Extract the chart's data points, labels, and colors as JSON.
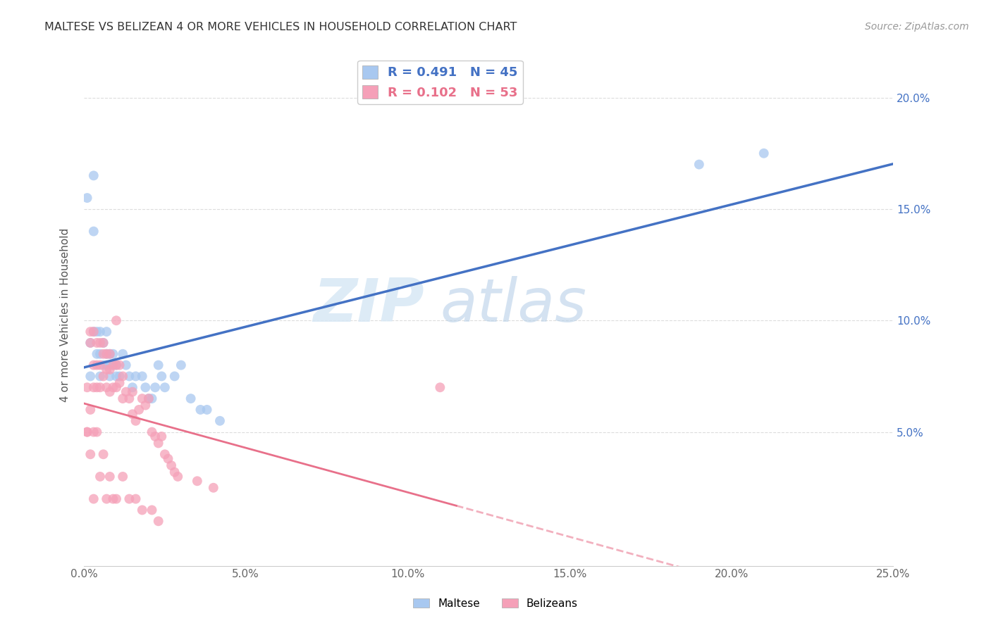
{
  "title": "MALTESE VS BELIZEAN 4 OR MORE VEHICLES IN HOUSEHOLD CORRELATION CHART",
  "source": "Source: ZipAtlas.com",
  "ylabel": "4 or more Vehicles in Household",
  "xlim": [
    0.0,
    0.25
  ],
  "ylim": [
    -0.01,
    0.215
  ],
  "xticks": [
    0.0,
    0.05,
    0.1,
    0.15,
    0.2,
    0.25
  ],
  "yticks": [
    0.05,
    0.1,
    0.15,
    0.2
  ],
  "xtick_labels": [
    "0.0%",
    "5.0%",
    "10.0%",
    "15.0%",
    "20.0%",
    "25.0%"
  ],
  "ytick_labels_right": [
    "5.0%",
    "10.0%",
    "15.0%",
    "20.0%"
  ],
  "legend_maltese": "R = 0.491   N = 45",
  "legend_belizean": "R = 0.102   N = 53",
  "color_maltese": "#A8C8F0",
  "color_belizean": "#F5A0B8",
  "color_maltese_line": "#4472C4",
  "color_belizean_line": "#E8708A",
  "watermark": "ZIPatlas",
  "maltese_x": [
    0.001,
    0.002,
    0.002,
    0.003,
    0.003,
    0.003,
    0.004,
    0.004,
    0.005,
    0.005,
    0.005,
    0.006,
    0.006,
    0.007,
    0.007,
    0.007,
    0.008,
    0.008,
    0.008,
    0.009,
    0.009,
    0.01,
    0.01,
    0.011,
    0.012,
    0.013,
    0.014,
    0.015,
    0.016,
    0.018,
    0.019,
    0.02,
    0.021,
    0.022,
    0.023,
    0.024,
    0.025,
    0.028,
    0.03,
    0.033,
    0.036,
    0.038,
    0.042,
    0.19,
    0.21
  ],
  "maltese_y": [
    0.155,
    0.09,
    0.075,
    0.165,
    0.14,
    0.095,
    0.095,
    0.085,
    0.095,
    0.085,
    0.075,
    0.09,
    0.08,
    0.095,
    0.085,
    0.08,
    0.085,
    0.08,
    0.075,
    0.085,
    0.08,
    0.08,
    0.075,
    0.075,
    0.085,
    0.08,
    0.075,
    0.07,
    0.075,
    0.075,
    0.07,
    0.065,
    0.065,
    0.07,
    0.08,
    0.075,
    0.07,
    0.075,
    0.08,
    0.065,
    0.06,
    0.06,
    0.055,
    0.17,
    0.175
  ],
  "belizean_x": [
    0.001,
    0.001,
    0.002,
    0.002,
    0.002,
    0.003,
    0.003,
    0.003,
    0.004,
    0.004,
    0.004,
    0.005,
    0.005,
    0.005,
    0.006,
    0.006,
    0.006,
    0.007,
    0.007,
    0.007,
    0.008,
    0.008,
    0.008,
    0.009,
    0.009,
    0.01,
    0.01,
    0.011,
    0.011,
    0.012,
    0.012,
    0.013,
    0.014,
    0.015,
    0.015,
    0.016,
    0.017,
    0.018,
    0.019,
    0.02,
    0.021,
    0.022,
    0.023,
    0.024,
    0.025,
    0.026,
    0.027,
    0.028,
    0.029,
    0.035,
    0.04,
    0.11,
    0.01
  ],
  "belizean_y": [
    0.07,
    0.05,
    0.095,
    0.09,
    0.06,
    0.095,
    0.08,
    0.07,
    0.09,
    0.08,
    0.07,
    0.09,
    0.08,
    0.07,
    0.09,
    0.085,
    0.075,
    0.085,
    0.078,
    0.07,
    0.085,
    0.078,
    0.068,
    0.08,
    0.07,
    0.08,
    0.07,
    0.08,
    0.072,
    0.075,
    0.065,
    0.068,
    0.065,
    0.068,
    0.058,
    0.055,
    0.06,
    0.065,
    0.062,
    0.065,
    0.05,
    0.048,
    0.045,
    0.048,
    0.04,
    0.038,
    0.035,
    0.032,
    0.03,
    0.028,
    0.025,
    0.07,
    0.1
  ],
  "belizean_x_extra": [
    0.001,
    0.002,
    0.003,
    0.003,
    0.004,
    0.005,
    0.006,
    0.007,
    0.008,
    0.009,
    0.01,
    0.012,
    0.014,
    0.016,
    0.018,
    0.021,
    0.023
  ],
  "belizean_y_extra": [
    0.05,
    0.04,
    0.05,
    0.02,
    0.05,
    0.03,
    0.04,
    0.02,
    0.03,
    0.02,
    0.02,
    0.03,
    0.02,
    0.02,
    0.015,
    0.015,
    0.01
  ]
}
